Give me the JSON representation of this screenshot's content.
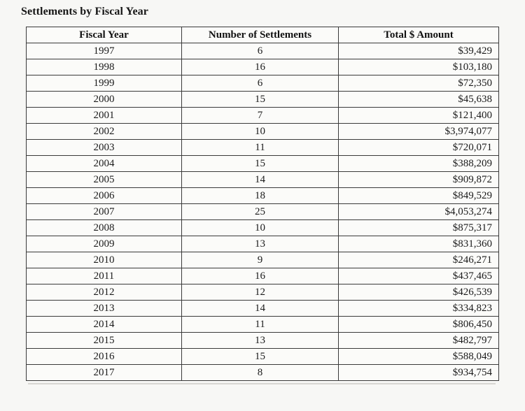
{
  "title": "Settlements by Fiscal Year",
  "table": {
    "headers": [
      "Fiscal Year",
      "Number of Settlements",
      "Total $ Amount"
    ],
    "rows": [
      {
        "fiscal_year": "1997",
        "num_settlements": "6",
        "total_amount": "$39,429"
      },
      {
        "fiscal_year": "1998",
        "num_settlements": "16",
        "total_amount": "$103,180"
      },
      {
        "fiscal_year": "1999",
        "num_settlements": "6",
        "total_amount": "$72,350"
      },
      {
        "fiscal_year": "2000",
        "num_settlements": "15",
        "total_amount": "$45,638"
      },
      {
        "fiscal_year": "2001",
        "num_settlements": "7",
        "total_amount": "$121,400"
      },
      {
        "fiscal_year": "2002",
        "num_settlements": "10",
        "total_amount": "$3,974,077"
      },
      {
        "fiscal_year": "2003",
        "num_settlements": "11",
        "total_amount": "$720,071"
      },
      {
        "fiscal_year": "2004",
        "num_settlements": "15",
        "total_amount": "$388,209"
      },
      {
        "fiscal_year": "2005",
        "num_settlements": "14",
        "total_amount": "$909,872"
      },
      {
        "fiscal_year": "2006",
        "num_settlements": "18",
        "total_amount": "$849,529"
      },
      {
        "fiscal_year": "2007",
        "num_settlements": "25",
        "total_amount": "$4,053,274"
      },
      {
        "fiscal_year": "2008",
        "num_settlements": "10",
        "total_amount": "$875,317"
      },
      {
        "fiscal_year": "2009",
        "num_settlements": "13",
        "total_amount": "$831,360"
      },
      {
        "fiscal_year": "2010",
        "num_settlements": "9",
        "total_amount": "$246,271"
      },
      {
        "fiscal_year": "2011",
        "num_settlements": "16",
        "total_amount": "$437,465"
      },
      {
        "fiscal_year": "2012",
        "num_settlements": "12",
        "total_amount": "$426,539"
      },
      {
        "fiscal_year": "2013",
        "num_settlements": "14",
        "total_amount": "$334,823"
      },
      {
        "fiscal_year": "2014",
        "num_settlements": "11",
        "total_amount": "$806,450"
      },
      {
        "fiscal_year": "2015",
        "num_settlements": "13",
        "total_amount": "$482,797"
      },
      {
        "fiscal_year": "2016",
        "num_settlements": "15",
        "total_amount": "$588,049"
      },
      {
        "fiscal_year": "2017",
        "num_settlements": "8",
        "total_amount": "$934,754"
      }
    ]
  },
  "colors": {
    "page_background": "#f7f7f5",
    "cell_background": "#fbfbf9",
    "border": "#3a3a3a",
    "text": "#1b1b1b"
  }
}
